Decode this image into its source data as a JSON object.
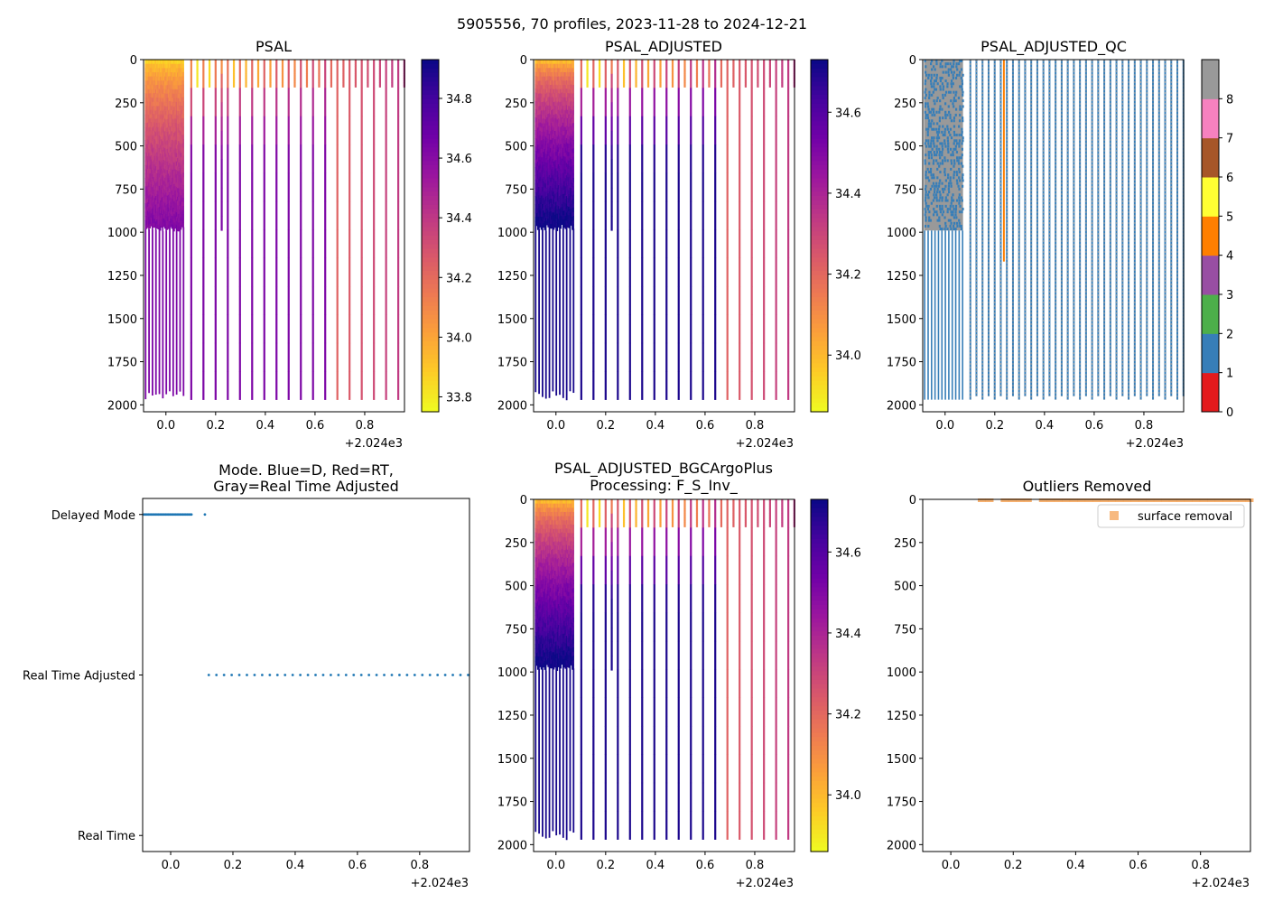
{
  "suptitle": "5905556, 70 profiles, 2023-11-28 to 2024-12-21",
  "colors": {
    "plasma": [
      "#0d0887",
      "#46039f",
      "#7201a8",
      "#9c179e",
      "#bd3786",
      "#d8576b",
      "#ed7953",
      "#fb9f3a",
      "#fdca26",
      "#f0f921"
    ],
    "qc_colors": [
      "#e41a1c",
      "#377eb8",
      "#4daf4a",
      "#984ea3",
      "#ff7f00",
      "#ffff33",
      "#a65628",
      "#f781bf",
      "#999999"
    ],
    "mode_points": "#1f77b4",
    "outlier_marker": "#f5a860",
    "axis": "#000000"
  },
  "chart_data": [
    {
      "id": "psal",
      "type": "heatmap",
      "title": "PSAL",
      "x_ticks": [
        "0.0",
        "0.2",
        "0.4",
        "0.6",
        "0.8"
      ],
      "x_offset_label": "+2.024e3",
      "y_ticks": [
        "0",
        "250",
        "500",
        "750",
        "1000",
        "1250",
        "1500",
        "1750",
        "2000"
      ],
      "xlim": [
        -0.09,
        0.96
      ],
      "ylim": [
        2040,
        0
      ],
      "colorbar": {
        "ticks": [
          "33.8",
          "34.0",
          "34.2",
          "34.4",
          "34.6",
          "34.8"
        ],
        "range": [
          33.75,
          34.93
        ],
        "cmap": "plasma_r"
      }
    },
    {
      "id": "psal_adj",
      "type": "heatmap",
      "title": "PSAL_ADJUSTED",
      "x_ticks": [
        "0.0",
        "0.2",
        "0.4",
        "0.6",
        "0.8"
      ],
      "x_offset_label": "+2.024e3",
      "y_ticks": [
        "0",
        "250",
        "500",
        "750",
        "1000",
        "1250",
        "1500",
        "1750",
        "2000"
      ],
      "xlim": [
        -0.09,
        0.96
      ],
      "ylim": [
        2040,
        0
      ],
      "colorbar": {
        "ticks": [
          "34.0",
          "34.2",
          "34.4",
          "34.6"
        ],
        "range": [
          33.86,
          34.73
        ],
        "cmap": "plasma_r"
      }
    },
    {
      "id": "psal_qc",
      "type": "heatmap",
      "title": "PSAL_ADJUSTED_QC",
      "x_ticks": [
        "0.0",
        "0.2",
        "0.4",
        "0.6",
        "0.8"
      ],
      "x_offset_label": "+2.024e3",
      "y_ticks": [
        "0",
        "250",
        "500",
        "750",
        "1000",
        "1250",
        "1500",
        "1750",
        "2000"
      ],
      "xlim": [
        -0.09,
        0.96
      ],
      "ylim": [
        2040,
        0
      ],
      "colorbar": {
        "ticks": [
          "0",
          "1",
          "2",
          "3",
          "4",
          "5",
          "6",
          "7",
          "8"
        ],
        "range": [
          0,
          9
        ],
        "cmap": "qc"
      }
    },
    {
      "id": "mode",
      "type": "scatter",
      "title": "Mode. Blue=D, Red=RT,",
      "title2": "Gray=Real Time Adjusted",
      "x_ticks": [
        "0.0",
        "0.2",
        "0.4",
        "0.6",
        "0.8"
      ],
      "x_offset_label": "+2.024e3",
      "y_categories": [
        "Real Time",
        "Real Time Adjusted",
        "Delayed Mode"
      ],
      "xlim": [
        -0.09,
        0.96
      ],
      "ylim": [
        -0.05,
        1.05
      ]
    },
    {
      "id": "bgc",
      "type": "heatmap",
      "title": "PSAL_ADJUSTED_BGCArgoPlus",
      "title2": "Processing: F_S_Inv_",
      "x_ticks": [
        "0.0",
        "0.2",
        "0.4",
        "0.6",
        "0.8"
      ],
      "x_offset_label": "+2.024e3",
      "y_ticks": [
        "0",
        "250",
        "500",
        "750",
        "1000",
        "1250",
        "1500",
        "1750",
        "2000"
      ],
      "xlim": [
        -0.09,
        0.96
      ],
      "ylim": [
        2040,
        0
      ],
      "colorbar": {
        "ticks": [
          "34.0",
          "34.2",
          "34.4",
          "34.6"
        ],
        "range": [
          33.86,
          34.73
        ],
        "cmap": "plasma_r"
      }
    },
    {
      "id": "outliers",
      "type": "scatter",
      "title": "Outliers Removed",
      "legend": "surface removal",
      "legend_loc": "top-right",
      "x_ticks": [
        "0.0",
        "0.2",
        "0.4",
        "0.6",
        "0.8"
      ],
      "x_offset_label": "+2.024e3",
      "y_ticks": [
        "0",
        "250",
        "500",
        "750",
        "1000",
        "1250",
        "1500",
        "1750",
        "2000"
      ],
      "xlim": [
        -0.09,
        0.96
      ],
      "ylim": [
        2040,
        0
      ]
    }
  ]
}
